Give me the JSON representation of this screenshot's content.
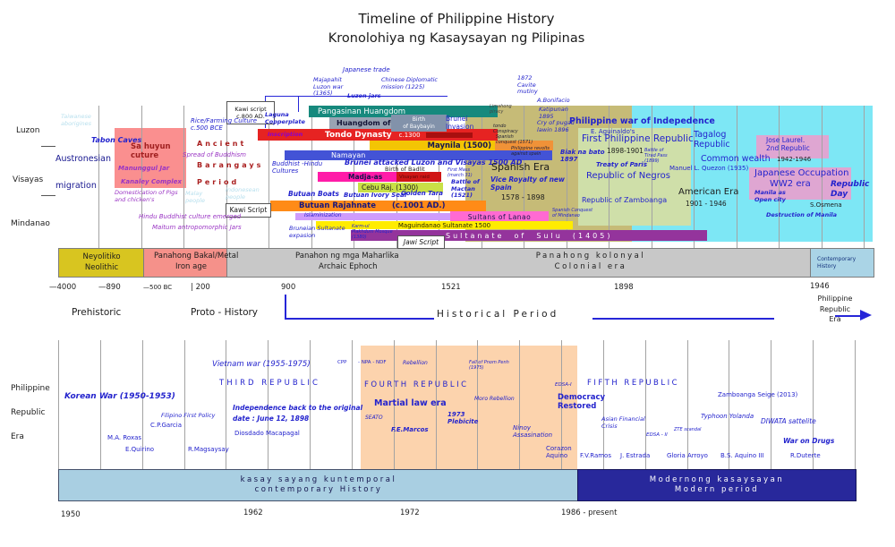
{
  "header": {
    "title1": "Timeline of Philippine History",
    "title2": "Kronolohiya ng Kasaysayan ng Pilipinas"
  },
  "regions": {
    "luzon": "Luzon",
    "visayas": "Visayas",
    "mindanao": "Mindanao"
  },
  "bars": {
    "pangasinan": "Pangasinan Huangdom",
    "mai": "Huangdom of Ma-i",
    "baybayin": "Birth\nof Baybayin",
    "tondo": "Tondo Dynasty",
    "tondo_date": "c.1300",
    "maynila": "Maynila (1500)",
    "namayan": "Namayan",
    "madjaas": "Madja-as",
    "visayan_raid": "Visayan raid",
    "cebu": "Cebu Raj. (1300)",
    "butuan": "Butuan Rajahnate",
    "butuan_date": "(c.1001 AD.)",
    "islam": "Islaminization",
    "lanao": "Sultans of Lanao",
    "maguindanao": "Maguindanao Sultanate 1500",
    "sulu": "Sultanate  of  Sulu  (1405)"
  },
  "notes": {
    "taiwanese": "Taiwanese\naborigines",
    "tabon": "Tabon  Caves",
    "sahuyun": "Sa huyun\ncuture",
    "manunggul": "Manunggul Jar",
    "kanaley": "Kanaley Complex",
    "austro1": "Austronesian",
    "austro2": "migration",
    "domestication": "Domestication of Pigs\nand chicken's",
    "hindu": "Hindu Buddhist  culture emerged",
    "maitum": "Maitum  antropomorphic Jars",
    "rice": "Rice/Farming Culture\nc.500 BCE",
    "ancient": "Ancient",
    "spread": "Spread  of  Buddhism",
    "barangays": "Barangays",
    "period": "Period",
    "malay": "Malay\npeople",
    "indonesean": "Indonesean\npeople",
    "kawi1": "Kawi script\nc.800 AD.",
    "kawi2": "Kawi Script",
    "laguna": "Laguna\nCopperplate",
    "inscription": "Inscription",
    "majapahit": "Majapahit\nLuzon war\n(1365)",
    "jtrade": "Japanese trade",
    "chinese": "Chinese Diplomatic\nmission (1225)",
    "luzonjars": "Luzon jars",
    "kabayan": "Kabayan Mummies (1200 AD.)",
    "bruneiinv": "Brunei\nInvasion",
    "buddhisthindu": "Buddhist -Hindu\nCultures",
    "butuanboats": "Butuan Boats",
    "bruneisult": "Bruneian Sultanate\nexpasion",
    "bruneiattack": "Brunei attacked Luzon and  Visayas 1500 AD",
    "badlit": "Birth of Badlit",
    "ivoryseal": "Butuan Ivory Seal",
    "goldentara": "Golden Tara",
    "firstmass": "First Mass\n(march 31)",
    "mactan": "Battle of\nMactan\n(1521)",
    "karmul": "Karm-ul\nMakhdum Mosque\n(1380)",
    "jawi": "Jawi Script",
    "conquestmindanao": "Spanish Conquest\nof Mindanao",
    "limahong": "Limahong\npiracy",
    "tondoconspiracy": "tondo\nConspiracy",
    "spanishconquest": "Spanish\nconquest (1571)",
    "revolts": "Philippine revolts\nagainst spain",
    "spanishera": "Spanish Era",
    "viceroyalty": "Vice Royalty of new\nSpain",
    "y1578": "1578   -   1898",
    "cavite": "1872\nCavite\nmutiny",
    "bonifacio": "A.Bonifacio",
    "katipunan": "Katipunan\n1895",
    "cry": "Cry of pugad\nlawin 1896",
    "biak": "Biak na bato\n1897",
    "warindependence": "Philippine war of Indepedence",
    "aguinaldo": "E. Aguinaldo's",
    "firstrepublic": "First Philippine Republic",
    "y18981901": "1898-1901",
    "tirad": "Battle of\nTirad Pass\n(1899)",
    "treaty": "Treaty of Paris",
    "negros": "Republic of Negros",
    "zamboanga": "Republic of Zamboanga",
    "tagalog": "Tagalog\nRepublic",
    "commonwealth": "Common wealth",
    "y19421946": "1942-1946",
    "quezon": "Manuel L. Quezon  (1935)",
    "laurel": "Jose Laurel.\n2nd Republic",
    "japocc": "Japanese Occupation",
    "ww2": "WW2 era",
    "opencity": "Manila as\nOpen city",
    "republicday": "Republic\nDay",
    "osmena": "S.Osmena",
    "destruction": "Destruction of Manila",
    "americanera": "American Era",
    "y19011946": "1901 -  1946"
  },
  "eras": {
    "neolithic": "Neyolitiko\nNeolithic",
    "metal1": "Panahong Bakal/Metal",
    "metal2": "Iron  age",
    "archaic1": "Panahon ng mga  Maharlika",
    "archaic2": "Archaic Ephoch",
    "colonial1": "Panahong kolonyal",
    "colonial2": "Colonial era",
    "contemporary": "Contemporary\nHistory"
  },
  "axis": {
    "t4000": "—4000",
    "t890": "—890",
    "t500": "—500 BC",
    "t200": "|   200",
    "t900": "900",
    "t1521": "1521",
    "t1898": "1898",
    "t1946": "1946"
  },
  "periods": {
    "prehistoric": "Prehistoric",
    "proto": "Proto - History",
    "historical": "Historical Period",
    "phil": "Philippine\nRepublic\nEra"
  },
  "bottomlabel": {
    "l1": "Philippine",
    "l2": "Republic",
    "l3": "Era"
  },
  "bottom": {
    "korea": "Korean War (1950-1953)",
    "vietnam": "Vietnam war  (1955-1975)",
    "third": "THIRD  REPUBLIC",
    "filipinofirst": "Filipino First Policy",
    "garcia": "C.P.Garcia",
    "roxas": "M.A. Roxas",
    "quirino": "E.Quirino",
    "magsaysay": "R.Magsaysay",
    "independence": "Independence back to the original",
    "independence2": "date : June  12, 1898",
    "macapagal": "Diosdado Macapagal",
    "cpp": "CPP",
    "npa": "-  NPA -   NDF",
    "rebellion": "Rebellion",
    "pnom": "Fall of Pnom Penh\n(1975)",
    "fourth": "FOURTH REPUBLIC",
    "martial": "Martial law era",
    "seato": "SEATO",
    "marcos": "F.E.Marcos",
    "plebicite": "1973\nPlebicite",
    "moro": "Moro Rebellion",
    "ninoy": "Ninoy\nAssasination",
    "edsa1": "EDSA-I",
    "democracy": "Democracy\nRestored",
    "corazon": "Corazon\nAquino",
    "fifth": "FIFTH REPUBLIC",
    "asian": "Asian  Financial\nCrisis",
    "edsa2": "EDSA - II",
    "zte": "ZTE scandal",
    "ramos": "F.V.Ramos",
    "estrada": "J. Estrada",
    "arroyo": "Gloria Arroyo",
    "zamboseige": "Zamboanga Seige (2013)",
    "yolanda": "Typhoon Yolanda",
    "diwata": "DIWATA sattelite",
    "drugs": "War on Drugs",
    "aquino3": "B.S. Aquino III",
    "duterte": "R.Duterte"
  },
  "bottombars": {
    "c1": "kasay sayang kuntemporal",
    "c2": "contemporary History",
    "m1": "Modernong  kasaysayan",
    "m2": "Modern period"
  },
  "years": {
    "y1950": "1950",
    "y1962": "1962",
    "y1972": "1972",
    "y1986": "1986 - present"
  }
}
